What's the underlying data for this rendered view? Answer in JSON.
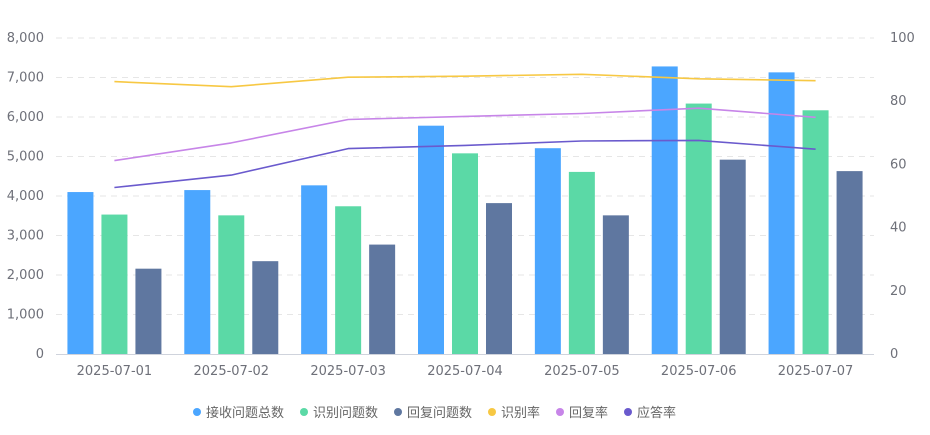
{
  "chart_data": {
    "type": "bar",
    "categories": [
      "2025-07-01",
      "2025-07-02",
      "2025-07-03",
      "2025-07-04",
      "2025-07-05",
      "2025-07-06",
      "2025-07-07"
    ],
    "y_left": {
      "min": 0,
      "max": 8000,
      "ticks": [
        0,
        1000,
        2000,
        3000,
        4000,
        5000,
        6000,
        7000,
        8000
      ],
      "tick_labels": [
        "0",
        "1,000",
        "2,000",
        "3,000",
        "4,000",
        "5,000",
        "6,000",
        "7,000",
        "8,000"
      ]
    },
    "y_right": {
      "min": 0,
      "max": 100,
      "ticks": [
        0,
        20,
        40,
        60,
        80,
        100
      ],
      "tick_labels": [
        "0",
        "20",
        "40",
        "60",
        "80",
        "100"
      ]
    },
    "grid": true,
    "legend_position": "bottom",
    "bar_series": [
      {
        "name": "接收问题总数",
        "color": "#4ba6ff",
        "values": [
          4100,
          4150,
          4270,
          5780,
          5210,
          7280,
          7130
        ]
      },
      {
        "name": "识别问题数",
        "color": "#5bd9a6",
        "values": [
          3530,
          3510,
          3740,
          5080,
          4610,
          6340,
          6170
        ]
      },
      {
        "name": "回复问题数",
        "color": "#5f77a0",
        "values": [
          2160,
          2350,
          2770,
          3820,
          3510,
          4920,
          4630
        ]
      }
    ],
    "line_series": [
      {
        "name": "识别率",
        "color": "#f7c843",
        "values": [
          86.2,
          84.6,
          87.6,
          87.9,
          88.5,
          87.1,
          86.5
        ]
      },
      {
        "name": "回复率",
        "color": "#c785e8",
        "values": [
          61.2,
          66.8,
          74.2,
          75.2,
          76.1,
          77.8,
          74.9
        ]
      },
      {
        "name": "应答率",
        "color": "#6a5acd",
        "values": [
          52.7,
          56.6,
          65.0,
          66.0,
          67.4,
          67.6,
          64.8
        ]
      }
    ]
  }
}
